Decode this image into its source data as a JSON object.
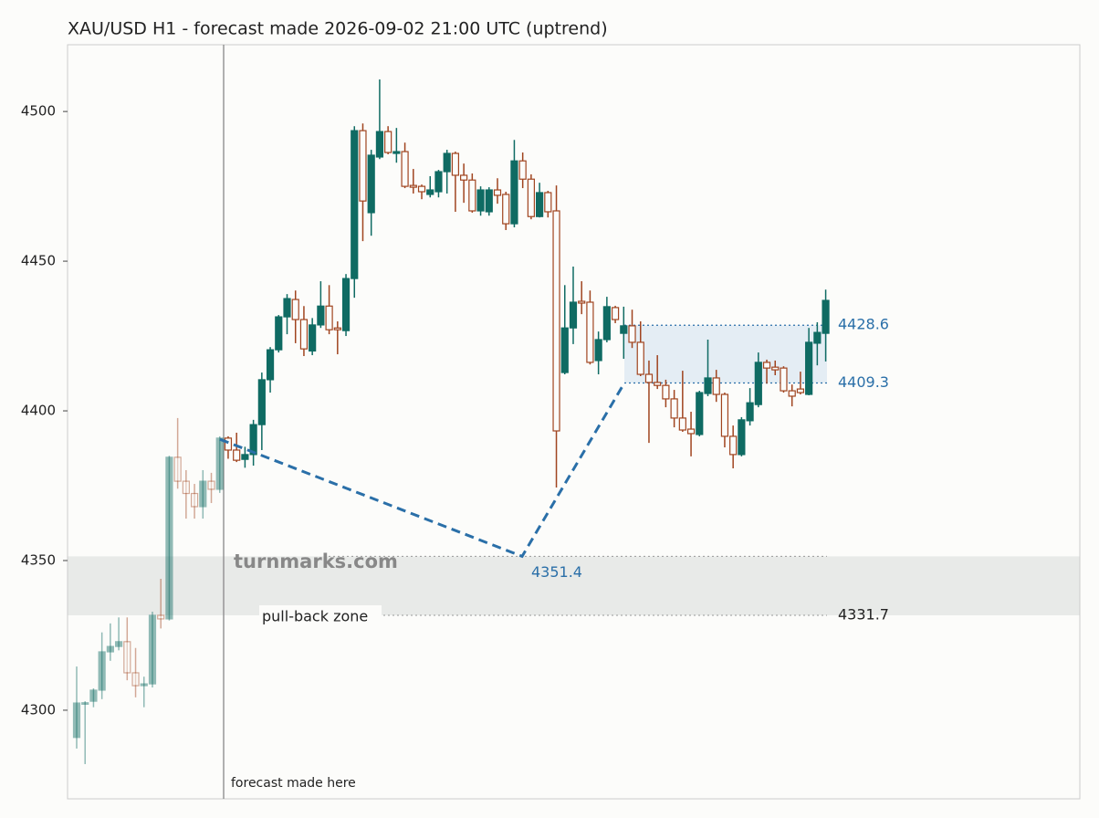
{
  "chart_data": {
    "type": "candlestick",
    "title": "XAU/USD H1 - forecast made 2026-09-02 21:00 UTC (uptrend)",
    "ylim": [
      4270.4,
      4522.3
    ],
    "yticks": [
      4300,
      4350,
      4400,
      4450,
      4500
    ],
    "colors": {
      "up": "#0f6b63",
      "down": "#a0441f",
      "forecast": "#2a6fa8",
      "zone": "#e8eae8"
    },
    "open": [
      4290.9,
      4302,
      4303,
      4306.7,
      4319.5,
      4321.3,
      4322.9,
      4312.5,
      4308.2,
      4308.8,
      4331.7,
      4330.5,
      4384.5,
      4376.5,
      4372.4,
      4368,
      4376.5,
      4373.8,
      4390.9,
      4386.9,
      4383.8,
      4385.4,
      4395.4,
      4410.4,
      4420.4,
      4431.4,
      4437.2,
      4430.5,
      4420,
      4428.7,
      4435,
      4427.7,
      4426.8,
      4444.2,
      4493.6,
      4466.2,
      4484.8,
      4493.3,
      4486,
      4486.6,
      4475.3,
      4475,
      4472.3,
      4473.2,
      4479.9,
      4486,
      4478.7,
      4477.1,
      4466.8,
      4466.5,
      4473.8,
      4472.3,
      4462.5,
      4483.5,
      4477.4,
      4464.9,
      4472.9,
      4466.8,
      4412.8,
      4427.7,
      4436.6,
      4436.3,
      4416.8,
      4423.8,
      4434.5,
      4425.9,
      4428.4,
      4422.9,
      4412.2,
      4409.5,
      4408.5,
      4404,
      4397.6,
      4393.9,
      4392.1,
      4405.8,
      4411,
      4405.5,
      4391.5,
      4385.4,
      4396.7,
      4402.1,
      4416.2,
      4414.6,
      4414.3,
      4406.7,
      4407.3,
      4405.5,
      4422.6,
      4425.9
    ],
    "high": [
      4314.6,
      4303,
      4307.3,
      4326,
      4329,
      4331,
      4331,
      4320.8,
      4311.2,
      4332.9,
      4343.9,
      4385,
      4397.6,
      4380.2,
      4375.6,
      4380.2,
      4379.3,
      4391.5,
      4391.5,
      4392.7,
      4388,
      4397,
      4412.8,
      4421.3,
      4432,
      4439,
      4440.2,
      4435,
      4431,
      4443.3,
      4442,
      4429.9,
      4445.7,
      4495.1,
      4496,
      4487.2,
      4510.7,
      4495.1,
      4494.5,
      4489.6,
      4480.8,
      4475.6,
      4478.4,
      4480.5,
      4487.2,
      4486.6,
      4482.6,
      4479.3,
      4475,
      4474.7,
      4477.7,
      4473.2,
      4490.5,
      4486.3,
      4479,
      4476.2,
      4473.5,
      4475.3,
      4442,
      4448.2,
      4443.3,
      4440.2,
      4426.5,
      4438.1,
      4435.1,
      4434.8,
      4433.8,
      4429.9,
      4416.8,
      4418.6,
      4410.4,
      4407,
      4413.4,
      4399.7,
      4406.7,
      4423.8,
      4413.7,
      4406.1,
      4395.1,
      4397.9,
      4407.6,
      4419.5,
      4417.1,
      4416.8,
      4414.9,
      4408.8,
      4413.1,
      4427.7,
      4429.6,
      4440.5
    ],
    "low": [
      4287.2,
      4282,
      4301,
      4303.7,
      4316.5,
      4320,
      4310,
      4304.3,
      4301,
      4307.6,
      4327.3,
      4330,
      4374,
      4364,
      4364,
      4364,
      4369.2,
      4372.6,
      4384,
      4382.9,
      4381,
      4381.7,
      4386.9,
      4406.1,
      4419.5,
      4425.6,
      4422.6,
      4418.3,
      4418.6,
      4427.7,
      4425.6,
      4418.9,
      4425,
      4437.8,
      4456.7,
      4458.5,
      4484.1,
      4485.7,
      4482.9,
      4474.4,
      4472.6,
      4470.7,
      4471.3,
      4471.3,
      4472.6,
      4466.5,
      4469.5,
      4466.2,
      4465.2,
      4465.2,
      4469.2,
      4460.4,
      4461.3,
      4474.4,
      4464,
      4464.6,
      4464.6,
      4374.4,
      4412.2,
      4422.3,
      4432.3,
      4415.5,
      4412.2,
      4422.9,
      4429.3,
      4417.4,
      4421,
      4411.6,
      4389.3,
      4407.3,
      4401.2,
      4394.5,
      4393,
      4384.8,
      4391.5,
      4404.9,
      4403,
      4387.8,
      4380.8,
      4384.8,
      4395.1,
      4401.2,
      4409.1,
      4411.9,
      4406.1,
      4401.5,
      4405.5,
      4405.2,
      4415.2,
      4416.5
    ],
    "close": [
      4302.4,
      4302.5,
      4306.7,
      4319.5,
      4321.3,
      4322.9,
      4312.5,
      4308.2,
      4308.8,
      4331.7,
      4330.5,
      4384.5,
      4376.5,
      4372.4,
      4368,
      4376.5,
      4373.8,
      4390.9,
      4386.9,
      4383.5,
      4385.4,
      4395.4,
      4410.4,
      4420.4,
      4431.4,
      4437.5,
      4430.5,
      4420.7,
      4428.7,
      4435,
      4427.1,
      4427.1,
      4444.2,
      4493.6,
      4470.1,
      4485.4,
      4493.3,
      4486.3,
      4486.6,
      4475,
      4474.7,
      4473.2,
      4473.8,
      4479.9,
      4486,
      4478.7,
      4477.1,
      4466.8,
      4473.8,
      4473.8,
      4472,
      4462.5,
      4483.5,
      4477.4,
      4464.9,
      4472.9,
      4466.5,
      4393.3,
      4427.7,
      4436.3,
      4436,
      4416.2,
      4423.8,
      4434.8,
      4430.5,
      4428.4,
      4422.9,
      4412.2,
      4409.5,
      4408.5,
      4404,
      4397.6,
      4393.6,
      4392.4,
      4406.1,
      4411,
      4405.5,
      4391.5,
      4385.4,
      4397,
      4402.7,
      4416.2,
      4414.3,
      4413.7,
      4406.7,
      4404.9,
      4406.1,
      4422.9,
      4426.2,
      4436.9
    ],
    "forecast_path": [
      4390.5,
      4351.4,
      4409.3
    ],
    "target_zone": [
      4409.3,
      4428.6
    ],
    "pullback_zone": [
      4331.7,
      4351.4
    ],
    "pullback_label": "pull-back zone",
    "forecast_label": "forecast made here",
    "watermark": "turnmarks.com"
  }
}
